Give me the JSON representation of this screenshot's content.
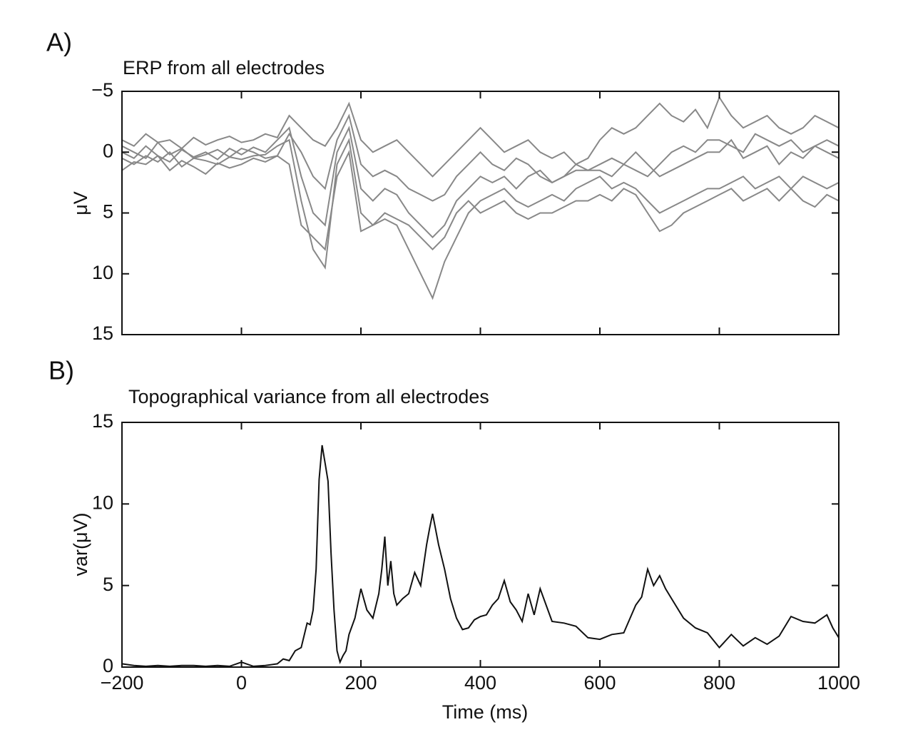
{
  "chart_data": [
    {
      "type": "line",
      "label": "A)",
      "title": "ERP from all electrodes",
      "ylabel": "μV",
      "x": [
        -200,
        -180,
        -160,
        -140,
        -120,
        -100,
        -80,
        -60,
        -40,
        -20,
        0,
        20,
        40,
        60,
        80,
        100,
        120,
        140,
        160,
        180,
        200,
        220,
        240,
        260,
        280,
        300,
        320,
        340,
        360,
        380,
        400,
        420,
        440,
        460,
        480,
        500,
        520,
        540,
        560,
        580,
        600,
        620,
        640,
        660,
        680,
        700,
        720,
        740,
        760,
        780,
        800,
        820,
        840,
        860,
        880,
        900,
        920,
        940,
        960,
        980,
        1000
      ],
      "series": [
        {
          "color": "#888888",
          "values": [
            0.5,
            1,
            0.3,
            0.8,
            0,
            1.2,
            0.5,
            0.7,
            1,
            0.4,
            0.6,
            0.3,
            0.2,
            -0.5,
            -1,
            4,
            8,
            9.5,
            1,
            -1,
            5,
            6,
            5.5,
            6,
            8,
            10,
            12,
            9,
            7,
            5,
            4,
            3.5,
            3,
            4,
            4.5,
            4,
            3.5,
            4,
            3,
            2.5,
            2,
            3,
            2.5,
            3,
            4,
            5,
            4.5,
            4,
            3.5,
            3,
            3,
            2.5,
            2,
            3,
            2.5,
            2,
            3,
            2,
            2.5,
            3,
            2.5
          ]
        },
        {
          "color": "#888888",
          "values": [
            -1,
            -0.5,
            -1.5,
            -0.8,
            -1,
            -0.3,
            -1.2,
            -0.6,
            -1,
            -1.3,
            -0.8,
            -1,
            -1.5,
            -1.2,
            -3,
            -2,
            -1,
            -0.5,
            -2,
            -4,
            -1,
            0,
            -0.5,
            -1,
            0,
            1,
            2,
            1,
            0,
            -1,
            -2,
            -1,
            0,
            -0.5,
            -1,
            0,
            0.5,
            0,
            1,
            0.5,
            -1,
            -2,
            -1.5,
            -2,
            -3,
            -4,
            -3,
            -2.5,
            -3.5,
            -2,
            -4.5,
            -3,
            -2,
            -2.5,
            -3,
            -2,
            -1.5,
            -2,
            -3,
            -2.5,
            -2
          ]
        },
        {
          "color": "#888888",
          "values": [
            0,
            0.5,
            -0.5,
            0.3,
            0.8,
            -0.2,
            0.4,
            0,
            0.6,
            -0.3,
            0.2,
            -0.4,
            0,
            -1,
            -2,
            2,
            5,
            6,
            0,
            -2,
            3,
            4,
            3,
            3.5,
            5,
            6,
            7,
            6,
            4,
            3,
            2,
            2.5,
            2,
            3,
            2,
            1.5,
            2.5,
            2,
            1,
            1.5,
            1,
            0.5,
            1,
            0,
            1,
            2,
            1.5,
            1,
            0.5,
            0,
            0,
            -1,
            0.5,
            0,
            -0.5,
            1,
            0,
            0.5,
            -0.5,
            0,
            0.5
          ]
        },
        {
          "color": "#888888",
          "values": [
            1.5,
            0.8,
            1,
            0.3,
            1.5,
            0.7,
            1.2,
            1.8,
            0.9,
            1.3,
            1,
            0.5,
            0.8,
            0.3,
            1,
            6,
            7,
            8,
            2,
            0,
            6.5,
            6,
            5,
            5.5,
            6,
            7,
            8,
            7,
            5,
            4,
            5,
            4.5,
            4,
            5,
            5.5,
            5,
            5,
            4.5,
            4,
            4,
            3.5,
            4,
            3,
            3.5,
            5,
            6.5,
            6,
            5,
            4.5,
            4,
            3.5,
            3,
            4,
            3.5,
            3,
            4,
            3,
            4,
            4.5,
            3.5,
            4
          ]
        },
        {
          "color": "#888888",
          "values": [
            -0.5,
            0,
            0.5,
            -0.8,
            0.2,
            -0.3,
            0.5,
            0.2,
            -0.2,
            0.4,
            -0.3,
            0,
            0.5,
            0.3,
            -1.5,
            0,
            2,
            3,
            -1,
            -3,
            1,
            2,
            1.5,
            2,
            3,
            3.5,
            4,
            3.5,
            2,
            1,
            0,
            1,
            1.5,
            0.5,
            1,
            2,
            2.5,
            2,
            1.5,
            1.5,
            1.5,
            2,
            1,
            1.5,
            2,
            1,
            0,
            -0.5,
            0,
            -1,
            -1,
            -0.5,
            0,
            -1.5,
            -1,
            -0.5,
            -1,
            0,
            -0.5,
            -1,
            -0.5
          ]
        }
      ],
      "xlim": [
        -200,
        1000
      ],
      "xticks": [
        -200,
        0,
        200,
        400,
        600,
        800,
        1000
      ],
      "ylim": [
        -5,
        15
      ],
      "y_inverted": true,
      "yticks": [
        {
          "value": -5,
          "label": "−5"
        },
        0,
        5,
        10,
        15
      ]
    },
    {
      "type": "line",
      "label": "B)",
      "title": "Topographical variance from all electrodes",
      "ylabel": "var(μV)",
      "xlabel": "Time (ms)",
      "x": [
        -200,
        -180,
        -160,
        -140,
        -120,
        -100,
        -80,
        -60,
        -40,
        -20,
        0,
        20,
        40,
        60,
        70,
        80,
        90,
        100,
        110,
        115,
        120,
        125,
        130,
        135,
        140,
        145,
        150,
        155,
        160,
        165,
        170,
        175,
        180,
        190,
        200,
        210,
        220,
        230,
        235,
        240,
        245,
        250,
        255,
        260,
        270,
        280,
        290,
        300,
        310,
        315,
        320,
        330,
        340,
        350,
        360,
        370,
        380,
        390,
        400,
        410,
        420,
        430,
        440,
        450,
        460,
        470,
        480,
        490,
        500,
        520,
        540,
        560,
        580,
        600,
        620,
        640,
        660,
        670,
        680,
        690,
        700,
        710,
        720,
        740,
        760,
        780,
        800,
        820,
        840,
        860,
        880,
        900,
        920,
        940,
        960,
        980,
        990,
        1000
      ],
      "color": "#111111",
      "values": [
        0.2,
        0.1,
        0.05,
        0.1,
        0.05,
        0.1,
        0.1,
        0.05,
        0.1,
        0.05,
        0.3,
        0.05,
        0.1,
        0.2,
        0.5,
        0.4,
        1,
        1.2,
        2.7,
        2.6,
        3.5,
        6,
        11.5,
        13.6,
        12.5,
        11.4,
        7,
        3.5,
        1,
        0.3,
        0.7,
        1,
        2,
        3,
        4.8,
        3.5,
        3,
        4.5,
        6,
        8,
        5,
        6.5,
        4.5,
        3.8,
        4.2,
        4.5,
        5.8,
        5,
        7.5,
        8.5,
        9.4,
        7.5,
        6,
        4.2,
        3,
        2.3,
        2.4,
        2.9,
        3.1,
        3.2,
        3.8,
        4.2,
        5.3,
        4,
        3.5,
        2.8,
        4.5,
        3.2,
        4.8,
        2.8,
        2.7,
        2.5,
        1.8,
        1.7,
        2,
        2.1,
        3.8,
        4.3,
        6,
        5,
        5.6,
        4.8,
        4.2,
        3,
        2.4,
        2.1,
        1.2,
        2,
        1.3,
        1.8,
        1.4,
        1.9,
        3.1,
        2.8,
        2.7,
        3.2,
        2.4,
        1.8
      ],
      "xlim": [
        -200,
        1000
      ],
      "xticks": [
        {
          "value": -200,
          "label": "−200"
        },
        0,
        200,
        400,
        600,
        800,
        1000
      ],
      "ylim": [
        0,
        15
      ],
      "yticks": [
        0,
        5,
        10,
        15
      ]
    }
  ]
}
